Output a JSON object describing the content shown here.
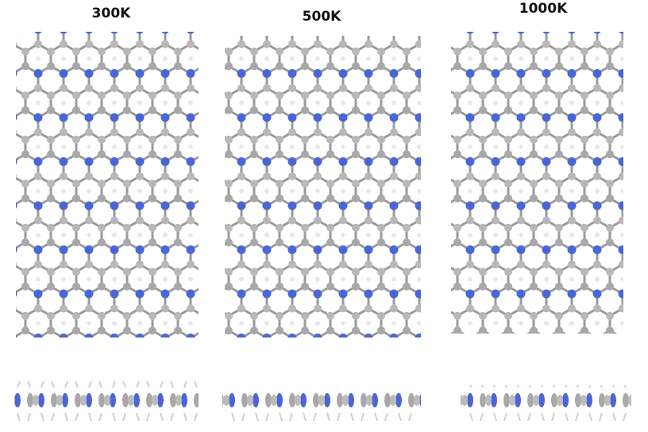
{
  "panels": [
    {
      "label": "300K"
    },
    {
      "label": "500K"
    },
    {
      "label": "1000K"
    }
  ]
}
